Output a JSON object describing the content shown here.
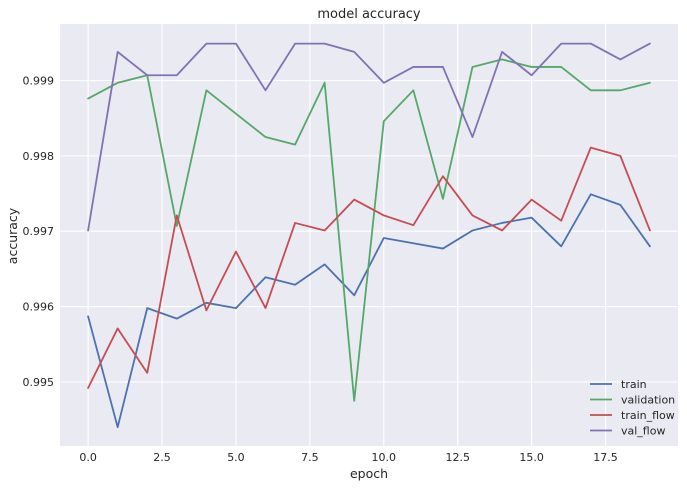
{
  "chart_data": {
    "type": "line",
    "title": "model accuracy",
    "xlabel": "epoch",
    "ylabel": "accuracy",
    "xlim": [
      -0.95,
      19.95
    ],
    "ylim": [
      0.99415,
      0.99975
    ],
    "xticks": [
      0.0,
      2.5,
      5.0,
      7.5,
      10.0,
      12.5,
      15.0,
      17.5
    ],
    "xtick_labels": [
      "0.0",
      "2.5",
      "5.0",
      "7.5",
      "10.0",
      "12.5",
      "15.0",
      "17.5"
    ],
    "yticks": [
      0.995,
      0.996,
      0.997,
      0.998,
      0.999
    ],
    "ytick_labels": [
      "0.995",
      "0.996",
      "0.997",
      "0.998",
      "0.999"
    ],
    "grid": true,
    "legend_position": "lower-right",
    "x": [
      0,
      1,
      2,
      3,
      4,
      5,
      6,
      7,
      8,
      9,
      10,
      11,
      12,
      13,
      14,
      15,
      16,
      17,
      18,
      19
    ],
    "series": [
      {
        "name": "train",
        "color": "#4c72b0",
        "values": [
          0.99587,
          0.9944,
          0.99598,
          0.99584,
          0.99605,
          0.99598,
          0.99639,
          0.99629,
          0.99656,
          0.99615,
          0.99691,
          0.99684,
          0.99677,
          0.99701,
          0.99711,
          0.99718,
          0.9968,
          0.99749,
          0.99735,
          0.9968
        ]
      },
      {
        "name": "validation",
        "color": "#55a868",
        "values": [
          0.99876,
          0.99897,
          0.99907,
          0.99707,
          0.99887,
          0.99856,
          0.99825,
          0.99815,
          0.99897,
          0.99475,
          0.99846,
          0.99887,
          0.99743,
          0.99918,
          0.99928,
          0.99918,
          0.99918,
          0.99887,
          0.99887,
          0.99897
        ]
      },
      {
        "name": "train_flow",
        "color": "#c44e52",
        "values": [
          0.99492,
          0.99571,
          0.99512,
          0.99721,
          0.99595,
          0.99673,
          0.99598,
          0.99711,
          0.99701,
          0.99742,
          0.99721,
          0.99708,
          0.99773,
          0.99721,
          0.99701,
          0.99742,
          0.99714,
          0.99811,
          0.998,
          0.99701
        ]
      },
      {
        "name": "val_flow",
        "color": "#8172b2",
        "values": [
          0.99701,
          0.99938,
          0.99907,
          0.99907,
          0.99949,
          0.99949,
          0.99887,
          0.99949,
          0.99949,
          0.99938,
          0.99897,
          0.99918,
          0.99918,
          0.99825,
          0.99938,
          0.99907,
          0.99949,
          0.99949,
          0.99928,
          0.99949
        ]
      }
    ]
  }
}
